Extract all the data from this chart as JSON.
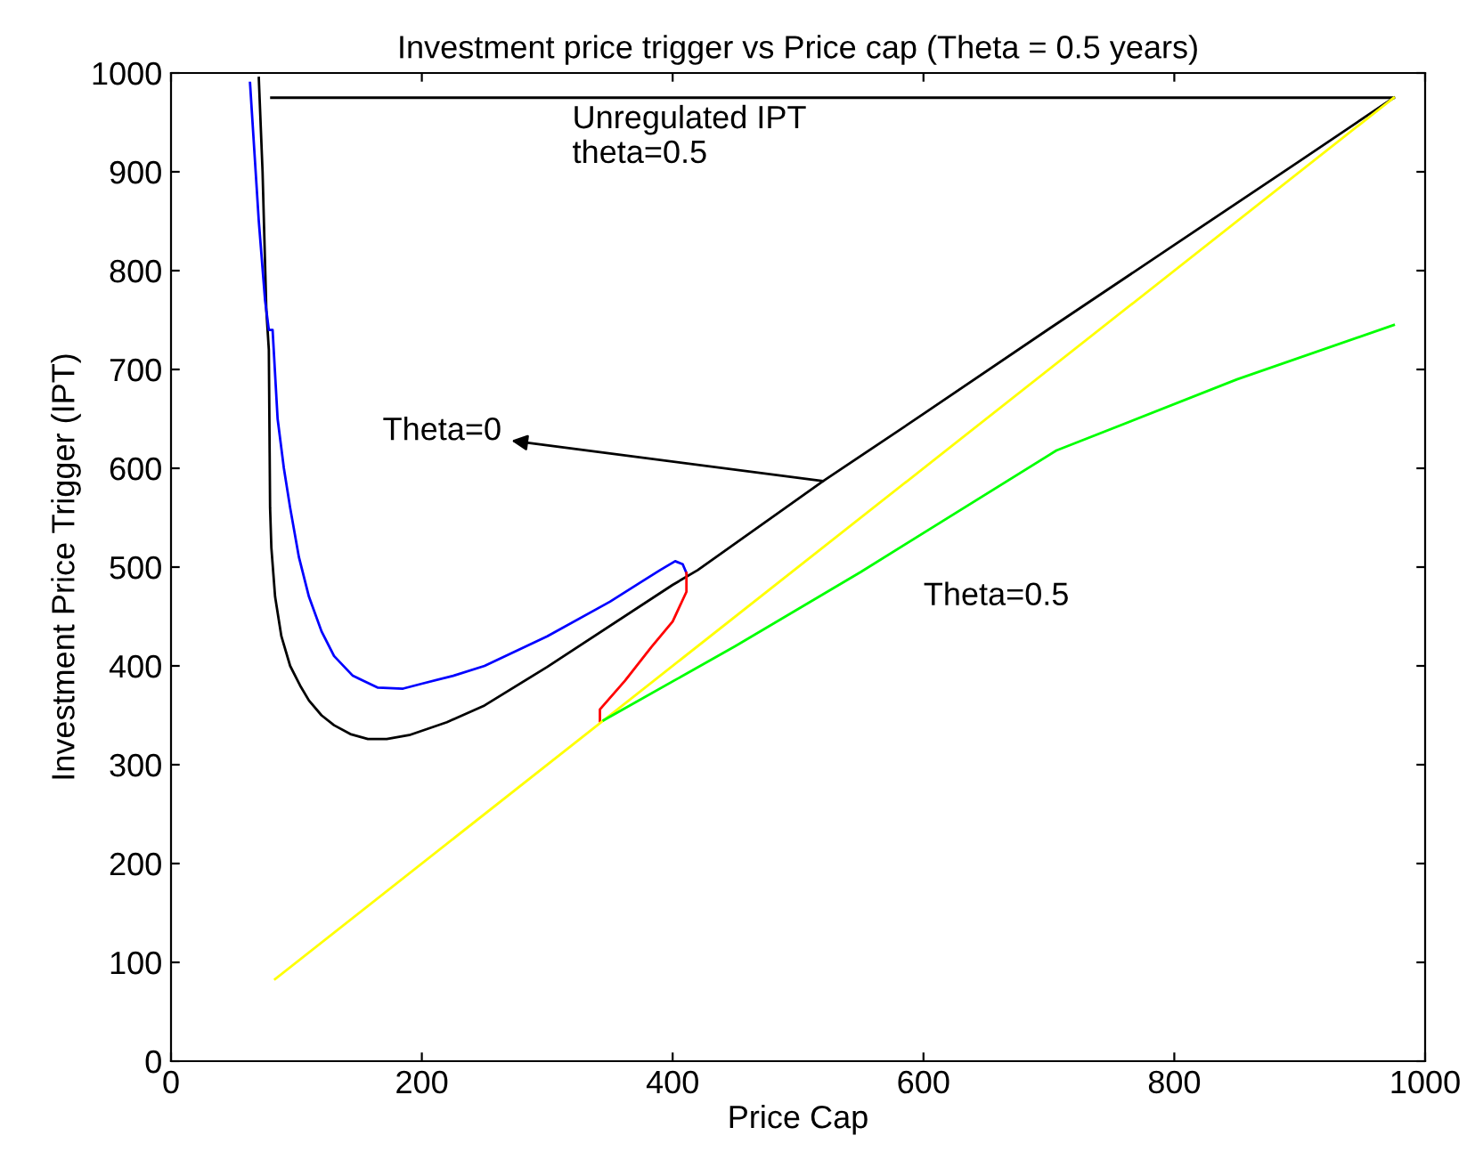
{
  "chart_data": {
    "type": "line",
    "title": "Investment price trigger vs Price cap (Theta = 0.5 years)",
    "xlabel": "Price Cap",
    "ylabel": "Investment Price Trigger (IPT)",
    "xlim": [
      0,
      1000
    ],
    "ylim": [
      0,
      1000
    ],
    "xticks": [
      0,
      200,
      400,
      600,
      800,
      1000
    ],
    "yticks": [
      0,
      100,
      200,
      300,
      400,
      500,
      600,
      700,
      800,
      900,
      1000
    ],
    "grid": false,
    "legend": false,
    "series": [
      {
        "color": "#000000",
        "x": [
          80,
          975
        ],
        "values": [
          975,
          975
        ]
      },
      {
        "color": "#000000",
        "x": [
          70,
          73,
          76,
          78,
          79,
          80,
          83,
          88,
          95,
          103,
          110,
          120,
          130,
          143,
          157,
          172,
          190,
          220,
          250,
          300,
          400,
          420,
          520,
          600,
          700,
          800,
          900,
          975
        ],
        "values": [
          995,
          900,
          760,
          720,
          560,
          520,
          470,
          430,
          400,
          380,
          365,
          350,
          340,
          331,
          326,
          326,
          330,
          343,
          360,
          399,
          482,
          497,
          587,
          655,
          741,
          826,
          911,
          975
        ]
      },
      {
        "color": "#0000ff",
        "x": [
          63,
          70,
          75,
          78,
          81,
          85,
          90,
          95,
          102,
          110,
          120,
          130,
          145,
          165,
          185,
          200,
          225,
          250,
          300,
          350,
          375,
          390,
          402,
          408,
          411
        ],
        "values": [
          990,
          850,
          770,
          740,
          740,
          650,
          600,
          560,
          510,
          470,
          435,
          410,
          390,
          378,
          377,
          382,
          390,
          400,
          430,
          465,
          485,
          497,
          506,
          503,
          494
        ]
      },
      {
        "color": "#ff0000",
        "x": [
          411,
          411,
          400,
          383,
          362,
          342,
          342
        ],
        "values": [
          494,
          475,
          445,
          419,
          385,
          356,
          344
        ]
      },
      {
        "color": "#ffff00",
        "x": [
          83,
          975
        ],
        "values": [
          83,
          975
        ]
      },
      {
        "color": "#00ff00",
        "x": [
          345,
          450,
          550,
          706,
          850,
          975
        ],
        "values": [
          345,
          420,
          495,
          618,
          690,
          745
        ]
      }
    ],
    "annotations": [
      "Unregulated IPT\ntheta=0.5",
      {
        "text": "Theta=0",
        "x": 520,
        "y": 587
      },
      "Theta=0.5"
    ]
  }
}
